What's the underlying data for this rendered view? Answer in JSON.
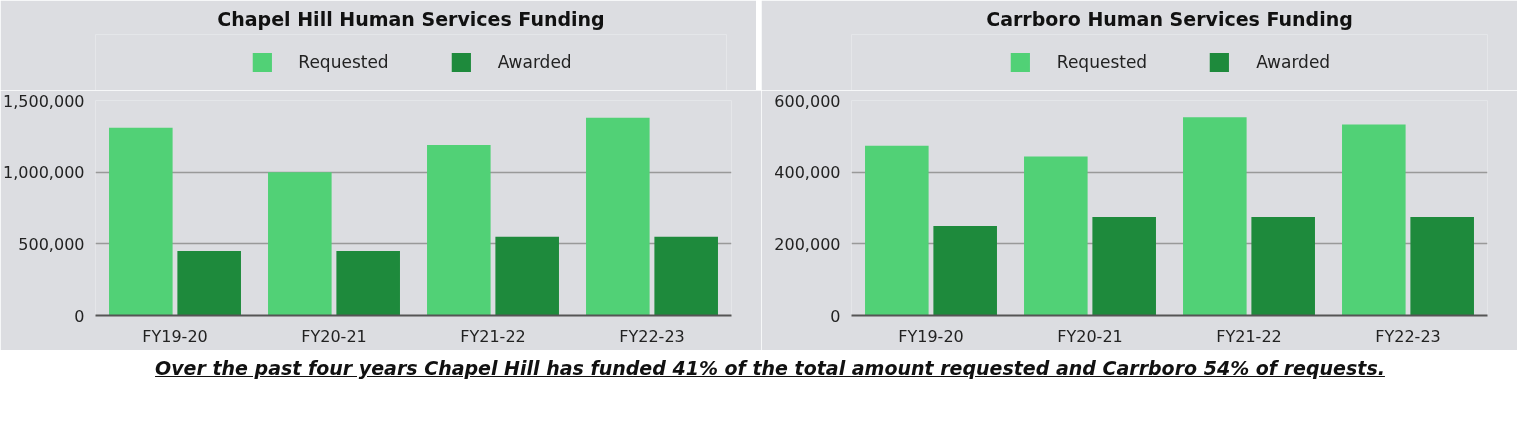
{
  "chart_data": [
    {
      "type": "bar",
      "title": "Chapel Hill Human Services Funding",
      "categories": [
        "FY19-20",
        "FY20-21",
        "FY21-22",
        "FY22-23"
      ],
      "series": [
        {
          "name": "Requested",
          "color": "#51d176",
          "values": [
            1310000,
            1000000,
            1190000,
            1380000
          ]
        },
        {
          "name": "Awarded",
          "color": "#1e8a3c",
          "values": [
            450000,
            450000,
            550000,
            550000
          ]
        }
      ],
      "ylim": [
        0,
        1500000
      ],
      "yticks": [
        0,
        {
          "value": 500000,
          "label": "500,000"
        },
        {
          "value": 1000000,
          "label": "1,000,000"
        },
        {
          "value": 1500000,
          "label": "1,500,000"
        }
      ],
      "grid": "y",
      "legend": "top",
      "annotations": [
        "Over the past four years Chapel Hill has funded 41% of the total amount requested and Carrboro 54% of requests."
      ]
    },
    {
      "type": "bar",
      "title": "Carrboro Human Services Funding",
      "categories": [
        "FY19-20",
        "FY20-21",
        "FY21-22",
        "FY22-23"
      ],
      "series": [
        {
          "name": "Requested",
          "color": "#51d176",
          "values": [
            474000,
            444000,
            553000,
            533000
          ]
        },
        {
          "name": "Awarded",
          "color": "#1e8a3c",
          "values": [
            250000,
            275000,
            275000,
            275000
          ]
        }
      ],
      "ylim": [
        0,
        600000
      ],
      "yticks": [
        0,
        {
          "value": 200000,
          "label": "200,000"
        },
        {
          "value": 400000,
          "label": "400,000"
        },
        {
          "value": 600000,
          "label": "600,000"
        }
      ],
      "grid": "y",
      "legend": "top"
    }
  ]
}
